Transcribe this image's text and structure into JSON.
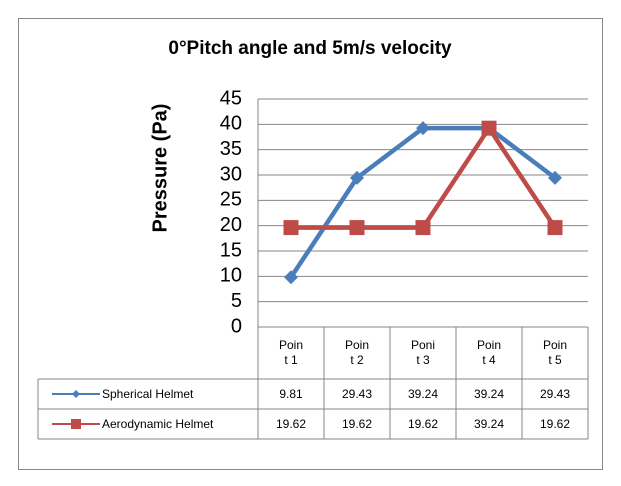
{
  "chart_data": {
    "type": "line",
    "title": "0°Pitch angle and 5m/s velocity",
    "y_label": "Pressure (Pa)",
    "categories": [
      "Point 1",
      "Point 2",
      "Ponit 3",
      "Point 4",
      "Point 5"
    ],
    "series": [
      {
        "name": "Spherical Helmet",
        "color": "#4a7ebb",
        "marker": "diamond",
        "values": [
          9.81,
          29.43,
          39.24,
          39.24,
          29.43
        ]
      },
      {
        "name": "Aerodynamic Helmet",
        "color": "#be4b48",
        "marker": "square",
        "values": [
          19.62,
          19.62,
          19.62,
          39.24,
          19.62
        ]
      }
    ],
    "ylim": [
      0,
      45
    ],
    "yticks": [
      0,
      5,
      10,
      15,
      20,
      25,
      30,
      35,
      40,
      45
    ],
    "grid": true
  }
}
